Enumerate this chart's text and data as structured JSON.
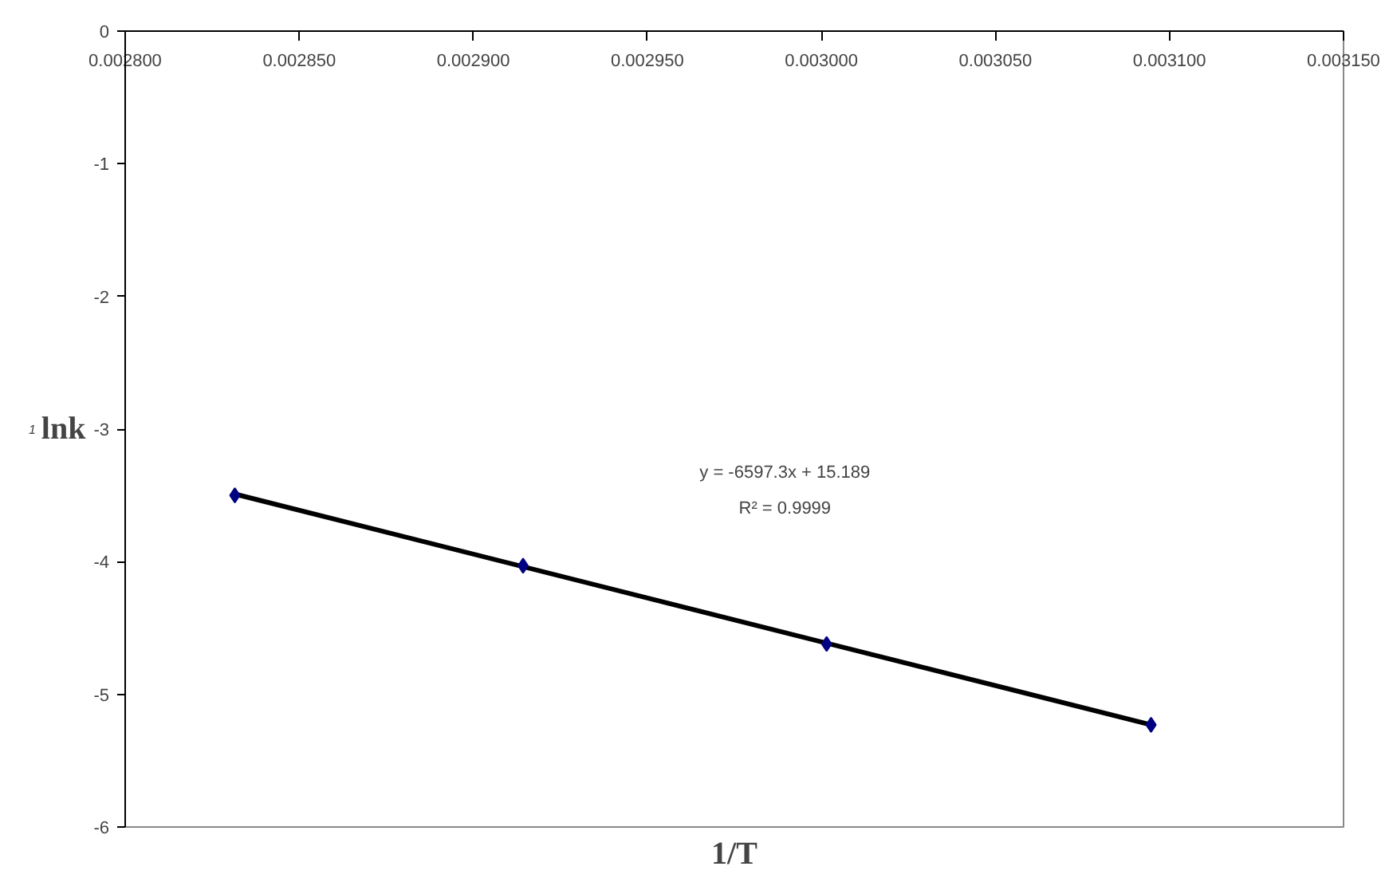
{
  "chart_data": {
    "type": "scatter",
    "xlabel": "1/T",
    "ylabel": "lnk",
    "x": [
      0.0028315,
      0.0029143,
      0.0030015,
      0.0030947
    ],
    "series": [
      {
        "type": "line",
        "color": "#000000",
        "x": [
          0.0028315,
          0.0030947
        ],
        "values": [
          -3.49,
          -5.23
        ],
        "marker": "none"
      },
      {
        "color": "#000080",
        "values": [
          -3.5,
          -4.03,
          -4.62,
          -5.23
        ],
        "marker": "diamond"
      }
    ],
    "xlim": [
      0.0028,
      0.00315
    ],
    "ylim": [
      -6,
      0
    ],
    "xticks": [
      {
        "value": 0.0028,
        "label": "0.002800"
      },
      {
        "value": 0.00285,
        "label": "0.002850"
      },
      {
        "value": 0.0029,
        "label": "0.002900"
      },
      {
        "value": 0.00295,
        "label": "0.002950"
      },
      {
        "value": 0.003,
        "label": "0.003000"
      },
      {
        "value": 0.00305,
        "label": "0.003050"
      },
      {
        "value": 0.0031,
        "label": "0.003100"
      },
      {
        "value": 0.00315,
        "label": "0.003150"
      }
    ],
    "yticks": [
      0,
      -1,
      -2,
      -3,
      -4,
      -5,
      -6
    ],
    "annotations": [
      "y = -6597.3x + 15.189",
      "R² = 0.9999",
      "1"
    ],
    "grid": false
  }
}
